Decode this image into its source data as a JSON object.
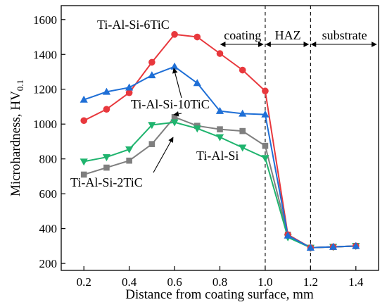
{
  "chart_data": {
    "type": "line",
    "xlabel": "Distance from coating surface, mm",
    "ylabel_main": "Microhardness, HV",
    "ylabel_sub": "0.1",
    "xlim": [
      0.1,
      1.5
    ],
    "ylim": [
      160,
      1680
    ],
    "x_ticks": [
      0.2,
      0.4,
      0.6,
      0.8,
      1.0,
      1.2,
      1.4
    ],
    "x_tick_labels": [
      "0.2",
      "0.4",
      "0.6",
      "0.8",
      "1.0",
      "1.2",
      "1.4"
    ],
    "y_ticks": [
      200,
      400,
      600,
      800,
      1000,
      1200,
      1400,
      1600
    ],
    "y_tick_labels": [
      "200",
      "400",
      "600",
      "800",
      "1000",
      "1200",
      "1400",
      "1600"
    ],
    "grid": false,
    "vlines": [
      1.0,
      1.2
    ],
    "regions": [
      {
        "label": "coating",
        "x0": 0.8,
        "x1": 1.0
      },
      {
        "label": "HAZ",
        "x0": 1.0,
        "x1": 1.2
      },
      {
        "label": "substrate",
        "x0": 1.2,
        "x1": 1.5
      }
    ],
    "series": [
      {
        "name": "Ti-Al-Si",
        "color": "#7f7f7f",
        "marker": "square",
        "x": [
          0.2,
          0.3,
          0.4,
          0.5,
          0.6,
          0.7,
          0.8,
          0.9,
          1.0,
          1.1,
          1.2,
          1.3,
          1.4
        ],
        "y": [
          710,
          750,
          790,
          885,
          1040,
          990,
          970,
          960,
          875,
          365,
          290,
          295,
          300
        ]
      },
      {
        "name": "Ti-Al-Si-2TiC",
        "color": "#1fb46e",
        "marker": "triangle-down",
        "x": [
          0.2,
          0.3,
          0.4,
          0.5,
          0.6,
          0.7,
          0.8,
          0.9,
          1.0,
          1.1,
          1.2,
          1.3,
          1.4
        ],
        "y": [
          785,
          810,
          855,
          995,
          1010,
          975,
          925,
          865,
          805,
          350,
          290,
          295,
          300
        ]
      },
      {
        "name": "Ti-Al-Si-6TiC",
        "color": "#e8383d",
        "marker": "circle",
        "x": [
          0.2,
          0.3,
          0.4,
          0.5,
          0.6,
          0.7,
          0.8,
          0.9,
          1.0,
          1.1,
          1.2,
          1.3,
          1.4
        ],
        "y": [
          1020,
          1085,
          1180,
          1355,
          1515,
          1500,
          1405,
          1310,
          1190,
          365,
          290,
          295,
          300
        ]
      },
      {
        "name": "Ti-Al-Si-10TiC",
        "color": "#1f6fd6",
        "marker": "triangle-up",
        "x": [
          0.2,
          0.3,
          0.4,
          0.5,
          0.6,
          0.7,
          0.8,
          0.9,
          1.0,
          1.1,
          1.2,
          1.3,
          1.4
        ],
        "y": [
          1140,
          1185,
          1210,
          1280,
          1330,
          1235,
          1075,
          1060,
          1055,
          360,
          290,
          295,
          300
        ]
      }
    ]
  }
}
